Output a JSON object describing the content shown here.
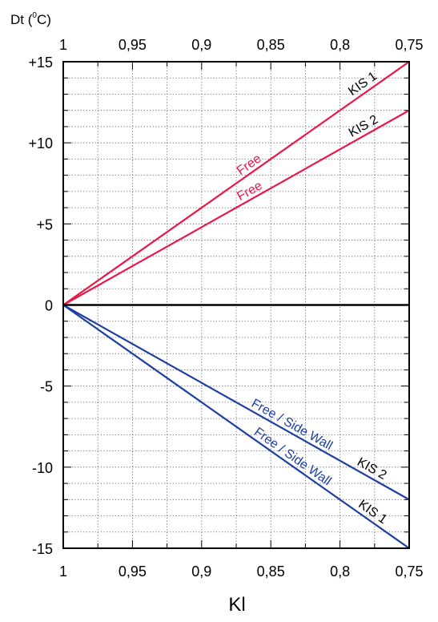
{
  "chart_data": {
    "type": "line",
    "title": "",
    "xlabel": "Kl",
    "ylabel": "Dt (°C)",
    "ylabel_parts": {
      "prefix": "Dt (",
      "superscript": "0",
      "suffix": "C)"
    },
    "xlim": [
      1.0,
      0.75
    ],
    "ylim": [
      -15,
      15
    ],
    "x_ticks": [
      1.0,
      0.95,
      0.9,
      0.85,
      0.8,
      0.75
    ],
    "x_tick_labels": [
      "1",
      "0,95",
      "0,9",
      "0,85",
      "0,8",
      "0,75"
    ],
    "y_ticks": [
      15,
      10,
      5,
      0,
      -5,
      -10,
      -15
    ],
    "y_tick_labels": [
      "+15",
      "+10",
      "+5",
      "0",
      "-5",
      "-10",
      "-15"
    ],
    "grid": true,
    "series": [
      {
        "color": "#e8194a",
        "x": [
          1.0,
          0.75
        ],
        "y": [
          0,
          15
        ],
        "labels": [
          "KIS  1",
          "Free"
        ]
      },
      {
        "color": "#e8194a",
        "x": [
          1.0,
          0.75
        ],
        "y": [
          0,
          12
        ],
        "labels": [
          "KIS  2",
          "Free"
        ]
      },
      {
        "color": "#1f3fa3",
        "x": [
          1.0,
          0.75
        ],
        "y": [
          0,
          -12
        ],
        "labels": [
          "KIS  2",
          "Free / Side  Wall"
        ]
      },
      {
        "color": "#1f3fa3",
        "x": [
          1.0,
          0.75
        ],
        "y": [
          0,
          -15
        ],
        "labels": [
          "KIS  1",
          "Free / Side  Wall"
        ]
      }
    ]
  }
}
